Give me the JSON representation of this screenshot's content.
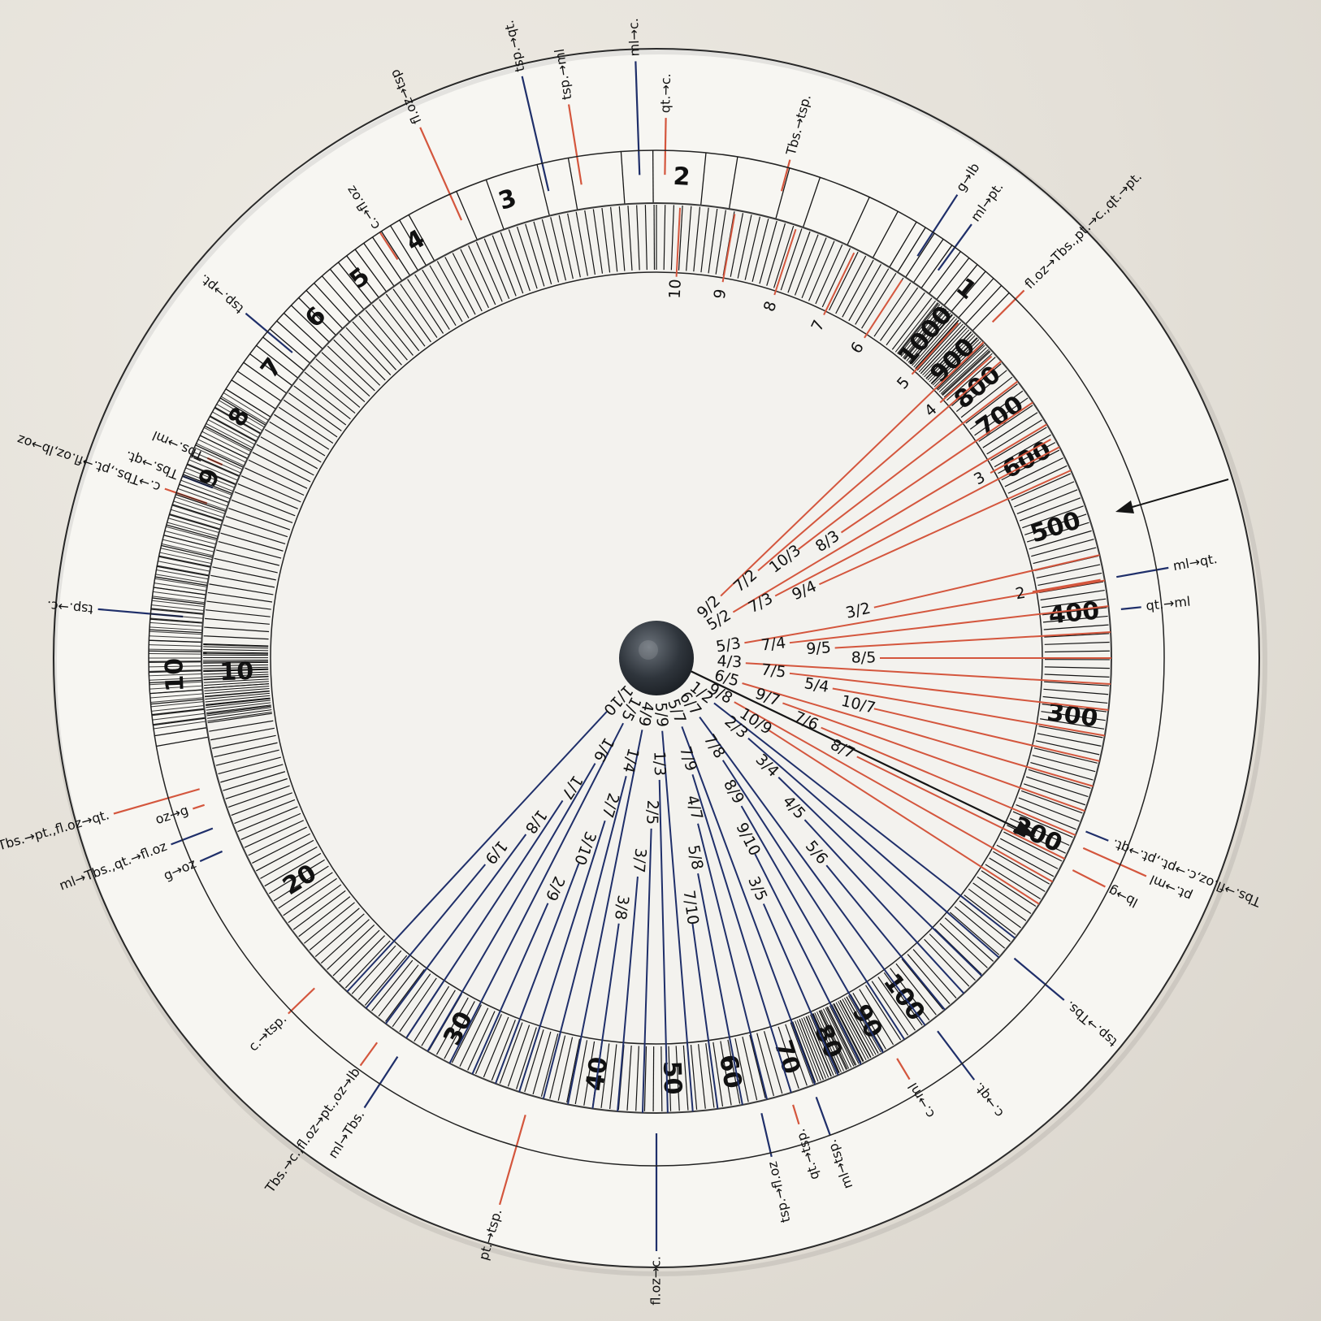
{
  "outer_wheel": {
    "labels": [
      {
        "text": "fl.oz→tsp",
        "color": "red",
        "angle": -24,
        "r_in": 590,
        "r_out": 715
      },
      {
        "text": "tsp.→qt.",
        "color": "blue",
        "angle": -13,
        "r_in": 590,
        "r_out": 735
      },
      {
        "text": "tsp.→ml",
        "color": "red",
        "angle": -9,
        "r_in": 590,
        "r_out": 690
      },
      {
        "text": "ml→c.",
        "color": "blue",
        "angle": -2,
        "r_in": 595,
        "r_out": 735
      },
      {
        "text": "qt.→c.",
        "color": "red",
        "angle": 1,
        "r_in": 595,
        "r_out": 665
      },
      {
        "text": "Tbs.→tsp.",
        "color": "red",
        "angle": 15,
        "r_in": 595,
        "r_out": 635
      },
      {
        "text": "g→lb",
        "color": "blue",
        "angle": 33,
        "r_in": 590,
        "r_out": 680
      },
      {
        "text": "ml→pt.",
        "color": "blue",
        "angle": 36,
        "r_in": 590,
        "r_out": 660
      },
      {
        "text": "fl.oz→Tbs.,pt.→c.,qt.→pt.",
        "color": "red",
        "angle": 45,
        "r_in": 585,
        "r_out": 640
      },
      {
        "text": "ml→qt.",
        "color": "blue",
        "angle": 80,
        "r_in": 575,
        "r_out": 640
      },
      {
        "text": "qt.→ml",
        "color": "blue",
        "angle": 84,
        "r_in": 575,
        "r_out": 600
      },
      {
        "text": "pt.→ml",
        "color": "red",
        "angle": 114,
        "r_in": 575,
        "r_out": 660
      },
      {
        "text": "lb→g",
        "color": "red",
        "angle": 117,
        "r_in": 575,
        "r_out": 620
      },
      {
        "text": "Tbs.→fl.oz,c.→pt.,pt.→qt.",
        "color": "blue",
        "angle": 112,
        "r_in": 570,
        "r_out": 600
      },
      {
        "text": "tsp.→Tbs.",
        "color": "blue",
        "angle": 130,
        "r_in": 575,
        "r_out": 655
      },
      {
        "text": "c.→qt.",
        "color": "blue",
        "angle": 143,
        "r_in": 575,
        "r_out": 650
      },
      {
        "text": "c.→ml",
        "color": "red",
        "angle": 149,
        "r_in": 575,
        "r_out": 605
      },
      {
        "text": "ml→tsp.",
        "color": "blue",
        "angle": 160,
        "r_in": 575,
        "r_out": 625
      },
      {
        "text": "qt.→tsp.",
        "color": "red",
        "angle": 163,
        "r_in": 575,
        "r_out": 600
      },
      {
        "text": "tsp.→fl.oz",
        "color": "blue",
        "angle": 167,
        "r_in": 575,
        "r_out": 630
      },
      {
        "text": "fl.oz→c.",
        "color": "blue",
        "angle": 180,
        "r_in": 585,
        "r_out": 730
      },
      {
        "text": "pt.→tsp.",
        "color": "red",
        "angle": 196,
        "r_in": 585,
        "r_out": 700
      },
      {
        "text": "ml→Tbs.",
        "color": "blue",
        "angle": 213,
        "r_in": 585,
        "r_out": 660
      },
      {
        "text": "Tbs.→c.,fl.oz→pt.,oz→lb",
        "color": "red",
        "angle": 216,
        "r_in": 585,
        "r_out": 620
      },
      {
        "text": "c.→tsp.",
        "color": "red",
        "angle": 226,
        "r_in": 585,
        "r_out": 630
      },
      {
        "text": "g→oz",
        "color": "blue",
        "angle": 246,
        "r_in": 585,
        "r_out": 615
      },
      {
        "text": "ml→Tbs.,qt.→fl.oz",
        "color": "blue",
        "angle": 249,
        "r_in": 585,
        "r_out": 640
      },
      {
        "text": "Tbs.→pt.,fl.oz→qt.",
        "color": "red",
        "angle": 254,
        "r_in": 585,
        "r_out": 695
      },
      {
        "text": "oz→g",
        "color": "red",
        "angle": 252,
        "r_in": 585,
        "r_out": 600
      },
      {
        "text": "tsp.→c.",
        "color": "blue",
        "angle": 275,
        "r_in": 585,
        "r_out": 690
      },
      {
        "text": "c.→Tbs.,pt.→fl.oz,lb→oz",
        "color": "red",
        "angle": 289,
        "r_in": 585,
        "r_out": 640
      },
      {
        "text": "Tbs.→qt.",
        "color": "blue",
        "angle": 291,
        "r_in": 585,
        "r_out": 625
      },
      {
        "text": "Tbs.→ml",
        "color": "red",
        "angle": 294,
        "r_in": 585,
        "r_out": 605
      },
      {
        "text": "tsp.→pt.",
        "color": "blue",
        "angle": 310,
        "r_in": 585,
        "r_out": 660
      },
      {
        "text": "c.→fl.oz",
        "color": "red",
        "angle": 327,
        "r_in": 585,
        "r_out": 625
      }
    ],
    "ring_numbers": [
      "1",
      "2",
      "3",
      "4",
      "5",
      "6",
      "7",
      "8",
      "9",
      "10"
    ]
  },
  "inner_wheel": {
    "scale_numbers": [
      "10",
      "20",
      "30",
      "40",
      "50",
      "60",
      "70",
      "80",
      "90",
      "100",
      "200",
      "300",
      "400",
      "500",
      "600",
      "700",
      "800",
      "900",
      "1000"
    ],
    "integers": [
      "2",
      "3",
      "4",
      "5",
      "6",
      "7",
      "8",
      "9",
      "10"
    ],
    "fractions_above_one": [
      "9/2",
      "7/2",
      "10/3",
      "8/3",
      "5/2",
      "7/3",
      "9/4",
      "3/2",
      "5/3",
      "7/4",
      "9/5",
      "8/5",
      "4/3",
      "7/5",
      "5/4",
      "10/7",
      "6/5",
      "9/7",
      "7/6",
      "8/7",
      "9/8",
      "10/9"
    ],
    "fractions_below_one": [
      "1/2",
      "2/3",
      "3/4",
      "4/5",
      "5/6",
      "6/7",
      "7/8",
      "8/9",
      "9/10",
      "3/5",
      "5/7",
      "7/9",
      "4/7",
      "5/8",
      "7/10",
      "5/9",
      "1/3",
      "2/5",
      "3/7",
      "3/8",
      "4/9",
      "1/4",
      "2/7",
      "3/10",
      "2/9",
      "1/5",
      "1/6",
      "1/7",
      "1/8",
      "1/9",
      "1/10"
    ]
  },
  "colors": {
    "red_line": "#d4563d",
    "blue_line": "#1f2f6a",
    "ink": "#151515",
    "paper": "#f7f6f2",
    "background": "#e6e2da",
    "hub": "#2c3138"
  }
}
